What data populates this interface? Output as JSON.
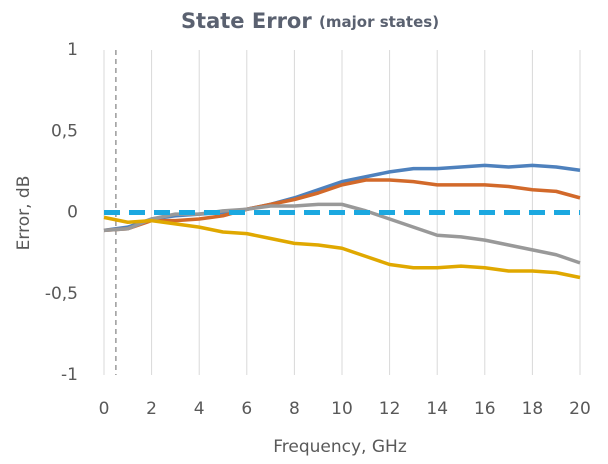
{
  "chart_data": {
    "type": "line",
    "title": "State Error",
    "subtitle": "(major states)",
    "x_label": "Frequency, GHz",
    "y_label": "Error, dB",
    "x": [
      0,
      1,
      2,
      3,
      4,
      5,
      6,
      7,
      8,
      9,
      10,
      11,
      12,
      13,
      14,
      15,
      16,
      17,
      18,
      19,
      20
    ],
    "series": [
      {
        "color": "#4e81bd",
        "values": [
          -0.11,
          -0.09,
          -0.04,
          -0.02,
          -0.01,
          0.0,
          0.02,
          0.05,
          0.09,
          0.14,
          0.19,
          0.22,
          0.25,
          0.27,
          0.27,
          0.28,
          0.29,
          0.28,
          0.29,
          0.28,
          0.26
        ]
      },
      {
        "color": "#d2692a",
        "values": [
          -0.11,
          -0.1,
          -0.05,
          -0.05,
          -0.04,
          -0.02,
          0.02,
          0.05,
          0.08,
          0.12,
          0.17,
          0.2,
          0.2,
          0.19,
          0.17,
          0.17,
          0.17,
          0.16,
          0.14,
          0.13,
          0.09
        ]
      },
      {
        "color": "#999999",
        "values": [
          -0.11,
          -0.1,
          -0.04,
          -0.01,
          -0.01,
          0.01,
          0.02,
          0.04,
          0.04,
          0.05,
          0.05,
          0.01,
          -0.04,
          -0.09,
          -0.14,
          -0.15,
          -0.17,
          -0.2,
          -0.23,
          -0.26,
          -0.31
        ]
      },
      {
        "color": "#e0a800",
        "values": [
          -0.03,
          -0.06,
          -0.05,
          -0.07,
          -0.09,
          -0.12,
          -0.13,
          -0.16,
          -0.19,
          -0.2,
          -0.22,
          -0.27,
          -0.32,
          -0.34,
          -0.34,
          -0.33,
          -0.34,
          -0.36,
          -0.36,
          -0.37,
          -0.4
        ]
      },
      {
        "color": "#1ba8e0",
        "dashed": true,
        "values": [
          0,
          0,
          0,
          0,
          0,
          0,
          0,
          0,
          0,
          0,
          0,
          0,
          0,
          0,
          0,
          0,
          0,
          0,
          0,
          0,
          0
        ]
      }
    ],
    "marker_x": 0.5,
    "xlim": [
      0,
      20
    ],
    "xticks": [
      0,
      2,
      4,
      6,
      8,
      10,
      12,
      14,
      16,
      18,
      20
    ],
    "ylim": [
      -1,
      1
    ],
    "yticks": [
      -1,
      {
        "value": -0.5,
        "label": "-0,5"
      },
      0,
      {
        "value": 0.5,
        "label": "0,5"
      },
      1
    ],
    "grid": true
  }
}
